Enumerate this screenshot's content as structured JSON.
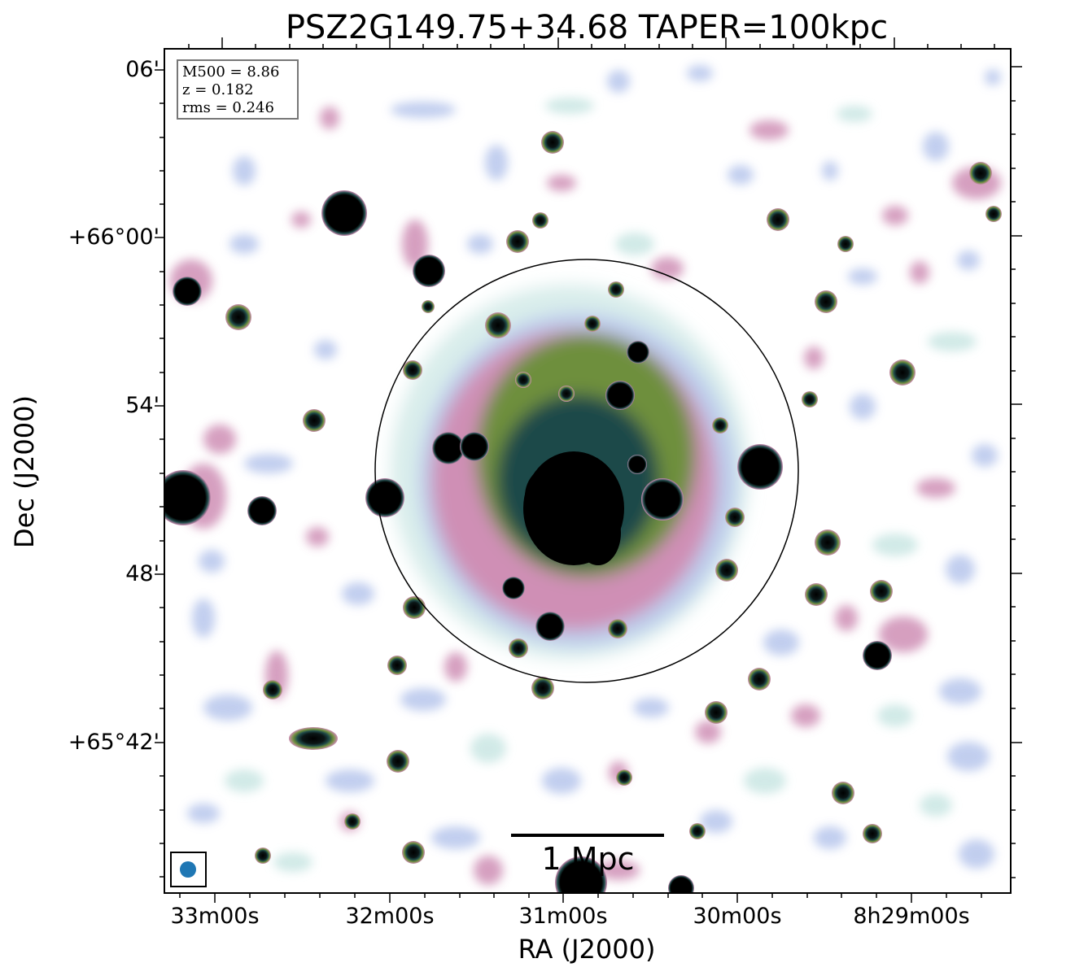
{
  "title": "PSZ2G149.75+34.68 TAPER=100kpc",
  "axes": {
    "x_label": "RA (J2000)",
    "y_label": "Dec (J2000)",
    "ra_ticks": [
      "33m00s",
      "32m00s",
      "31m00s",
      "30m00s",
      "8h29m00s"
    ],
    "dec_ticks": [
      "06'",
      "+66°00'",
      "54'",
      "48'",
      "+65°42'"
    ]
  },
  "info_box": {
    "mass": "M500 = 8.86",
    "redshift": "z = 0.182",
    "rms": "rms = 0.246"
  },
  "scalebar": {
    "label": "1 Mpc"
  },
  "colors": {
    "noise_faint": "#c9e6e3",
    "noise_blue": "#b7c6ec",
    "emission_pink": "#cf8fb5",
    "emission_olive": "#6e8f3c",
    "emission_teal": "#1f4a49",
    "core": "#000000",
    "beam": "#1f77b4"
  }
}
